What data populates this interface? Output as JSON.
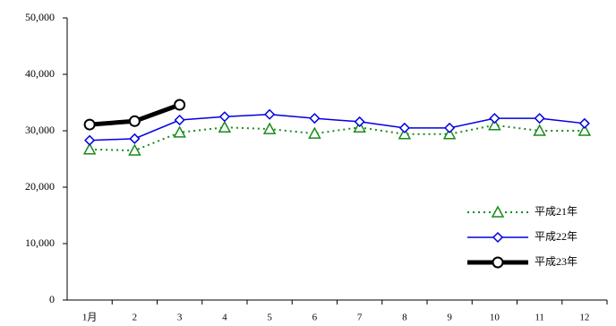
{
  "chart_data": {
    "type": "line",
    "categories": [
      "1月",
      "2",
      "3",
      "4",
      "5",
      "6",
      "7",
      "8",
      "9",
      "10",
      "11",
      "12"
    ],
    "series": [
      {
        "name": "平成21年",
        "color": "#1a8a1a",
        "marker": "triangle",
        "dash": "dotted",
        "width": 2,
        "values": [
          26700,
          26500,
          29700,
          30600,
          30300,
          29500,
          30600,
          29400,
          29400,
          31000,
          30000,
          30000
        ]
      },
      {
        "name": "平成22年",
        "color": "#0000e0",
        "marker": "diamond",
        "dash": "solid",
        "width": 1.5,
        "values": [
          28300,
          28600,
          31900,
          32500,
          32900,
          32200,
          31600,
          30500,
          30500,
          32200,
          32200,
          31300
        ]
      },
      {
        "name": "平成23年",
        "color": "#000000",
        "marker": "circle",
        "dash": "solid",
        "width": 5,
        "values": [
          31100,
          31700,
          34600,
          null,
          null,
          null,
          null,
          null,
          null,
          null,
          null,
          null
        ]
      }
    ],
    "ylim": [
      0,
      50000
    ],
    "yticks": [
      0,
      {
        "value": 10000,
        "label": "10,000"
      },
      {
        "value": 20000,
        "label": "20,000"
      },
      {
        "value": 30000,
        "label": "30,000"
      },
      {
        "value": 40000,
        "label": "40,000"
      },
      {
        "value": 50000,
        "label": "50,000"
      }
    ],
    "grid": false,
    "legend": "lower right"
  }
}
